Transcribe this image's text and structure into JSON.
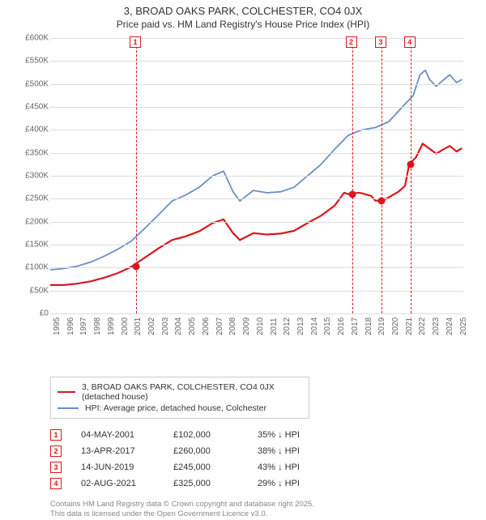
{
  "title": "3, BROAD OAKS PARK, COLCHESTER, CO4 0JX",
  "subtitle": "Price paid vs. HM Land Registry's House Price Index (HPI)",
  "chart": {
    "type": "line",
    "background_color": "#ffffff",
    "grid_color": "#dddddd",
    "text_color": "#666666",
    "x_years": [
      1995,
      1996,
      1997,
      1998,
      1999,
      2000,
      2001,
      2002,
      2003,
      2004,
      2005,
      2006,
      2007,
      2008,
      2009,
      2010,
      2011,
      2012,
      2013,
      2014,
      2015,
      2016,
      2017,
      2018,
      2019,
      2020,
      2021,
      2022,
      2023,
      2024,
      2025
    ],
    "x_min": 1995,
    "x_max": 2025.5,
    "ylim": [
      0,
      600000
    ],
    "ytick_step": 50000,
    "y_axis_labels": [
      "£0",
      "£50K",
      "£100K",
      "£150K",
      "£200K",
      "£250K",
      "£300K",
      "£350K",
      "£400K",
      "£450K",
      "£500K",
      "£550K",
      "£600K"
    ],
    "title_fontsize": 13,
    "subtitle_fontsize": 12,
    "axis_label_fontsize": 10,
    "series": [
      {
        "name": "hpi",
        "label": "HPI: Average price, detached house, Colchester",
        "color": "#6a8fc7",
        "line_width": 1.8,
        "data": [
          [
            1995,
            95000
          ],
          [
            1996,
            98000
          ],
          [
            1997,
            103000
          ],
          [
            1998,
            112000
          ],
          [
            1999,
            125000
          ],
          [
            2000,
            140000
          ],
          [
            2001,
            158000
          ],
          [
            2002,
            186000
          ],
          [
            2003,
            215000
          ],
          [
            2004,
            245000
          ],
          [
            2005,
            258000
          ],
          [
            2006,
            275000
          ],
          [
            2007,
            300000
          ],
          [
            2007.8,
            310000
          ],
          [
            2008.5,
            265000
          ],
          [
            2009,
            245000
          ],
          [
            2010,
            268000
          ],
          [
            2011,
            263000
          ],
          [
            2012,
            265000
          ],
          [
            2013,
            275000
          ],
          [
            2014,
            300000
          ],
          [
            2015,
            325000
          ],
          [
            2016,
            358000
          ],
          [
            2017,
            388000
          ],
          [
            2018,
            400000
          ],
          [
            2019,
            405000
          ],
          [
            2020,
            418000
          ],
          [
            2021,
            450000
          ],
          [
            2021.8,
            475000
          ],
          [
            2022.3,
            520000
          ],
          [
            2022.7,
            530000
          ],
          [
            2023,
            510000
          ],
          [
            2023.5,
            495000
          ],
          [
            2024,
            508000
          ],
          [
            2024.5,
            520000
          ],
          [
            2025,
            503000
          ],
          [
            2025.4,
            510000
          ]
        ]
      },
      {
        "name": "property",
        "label": "3, BROAD OAKS PARK, COLCHESTER, CO4 0JX (detached house)",
        "color": "#d9171e",
        "line_width": 2.2,
        "data": [
          [
            1995,
            62000
          ],
          [
            1996,
            62000
          ],
          [
            1997,
            65000
          ],
          [
            1998,
            70000
          ],
          [
            1999,
            78000
          ],
          [
            2000,
            88000
          ],
          [
            2001,
            102000
          ],
          [
            2002,
            122000
          ],
          [
            2003,
            142000
          ],
          [
            2004,
            160000
          ],
          [
            2005,
            168000
          ],
          [
            2006,
            179000
          ],
          [
            2007,
            197000
          ],
          [
            2007.8,
            205000
          ],
          [
            2008.5,
            175000
          ],
          [
            2009,
            160000
          ],
          [
            2010,
            175000
          ],
          [
            2011,
            172000
          ],
          [
            2012,
            174000
          ],
          [
            2013,
            180000
          ],
          [
            2014,
            197000
          ],
          [
            2015,
            213000
          ],
          [
            2016,
            235000
          ],
          [
            2016.7,
            263000
          ],
          [
            2017,
            260000
          ],
          [
            2017.8,
            263000
          ],
          [
            2018,
            262000
          ],
          [
            2018.7,
            256000
          ],
          [
            2019,
            246000
          ],
          [
            2019.5,
            245000
          ],
          [
            2020,
            253000
          ],
          [
            2020.7,
            265000
          ],
          [
            2021.2,
            278000
          ],
          [
            2021.5,
            325000
          ],
          [
            2022,
            340000
          ],
          [
            2022.5,
            370000
          ],
          [
            2023,
            359000
          ],
          [
            2023.5,
            348000
          ],
          [
            2024,
            357000
          ],
          [
            2024.5,
            365000
          ],
          [
            2025,
            353000
          ],
          [
            2025.4,
            360000
          ]
        ]
      }
    ],
    "reference_lines": [
      {
        "id": "1",
        "x": 2001.34,
        "color": "#d9171e"
      },
      {
        "id": "2",
        "x": 2017.28,
        "color": "#d9171e"
      },
      {
        "id": "3",
        "x": 2019.45,
        "color": "#d9171e"
      },
      {
        "id": "4",
        "x": 2021.59,
        "color": "#d9171e"
      }
    ],
    "markers": [
      {
        "x": 2001.34,
        "y": 102000,
        "color": "#d9171e"
      },
      {
        "x": 2017.28,
        "y": 260000,
        "color": "#d9171e"
      },
      {
        "x": 2019.45,
        "y": 245000,
        "color": "#d9171e"
      },
      {
        "x": 2021.59,
        "y": 325000,
        "color": "#d9171e"
      }
    ]
  },
  "legend": {
    "border_color": "#cccccc",
    "items": [
      {
        "color": "#d9171e",
        "label": "3, BROAD OAKS PARK, COLCHESTER, CO4 0JX (detached house)"
      },
      {
        "color": "#6a8fc7",
        "label": "HPI: Average price, detached house, Colchester"
      }
    ]
  },
  "events": [
    {
      "id": "1",
      "date": "04-MAY-2001",
      "price": "£102,000",
      "delta": "35% ↓ HPI",
      "box_color": "#d9171e"
    },
    {
      "id": "2",
      "date": "13-APR-2017",
      "price": "£260,000",
      "delta": "38% ↓ HPI",
      "box_color": "#d9171e"
    },
    {
      "id": "3",
      "date": "14-JUN-2019",
      "price": "£245,000",
      "delta": "43% ↓ HPI",
      "box_color": "#d9171e"
    },
    {
      "id": "4",
      "date": "02-AUG-2021",
      "price": "£325,000",
      "delta": "29% ↓ HPI",
      "box_color": "#d9171e"
    }
  ],
  "footer_line1": "Contains HM Land Registry data © Crown copyright and database right 2025.",
  "footer_line2": "This data is licensed under the Open Government Licence v3.0."
}
